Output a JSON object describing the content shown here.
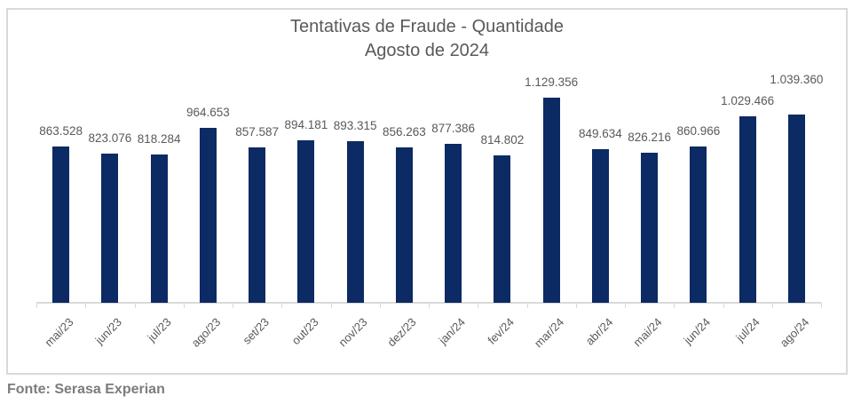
{
  "chart": {
    "title_line1": "Tentativas de Fraude - Quantidade",
    "title_line2": "Agosto de 2024",
    "source": "Fonte: Serasa Experian",
    "bar_color": "#0c2a64",
    "axis_color": "#d9d9d9",
    "text_color": "#595959"
  },
  "chart_data": {
    "type": "bar",
    "title": "Tentativas de Fraude - Quantidade",
    "subtitle": "Agosto de 2024",
    "categories": [
      "mai/23",
      "jun/23",
      "jul/23",
      "ago/23",
      "set/23",
      "out/23",
      "nov/23",
      "dez/23",
      "jan/24",
      "fev/24",
      "mar/24",
      "abr/24",
      "mai/24",
      "jun/24",
      "jul/24",
      "ago/24"
    ],
    "values": [
      863528,
      823076,
      818284,
      964653,
      857587,
      894181,
      893315,
      856263,
      877386,
      814802,
      1129356,
      849634,
      826216,
      860966,
      1029466,
      1039360
    ],
    "labels": [
      "863.528",
      "823.076",
      "818.284",
      "964.653",
      "857.587",
      "894.181",
      "893.315",
      "856.263",
      "877.386",
      "814.802",
      "1.129.356",
      "849.634",
      "826.216",
      "860.966",
      "1.029.466",
      "1.039.360"
    ],
    "xlabel": "",
    "ylabel": "",
    "ylim": [
      0,
      1200000
    ],
    "grid": false,
    "legend": null,
    "source": "Fonte: Serasa Experian"
  }
}
